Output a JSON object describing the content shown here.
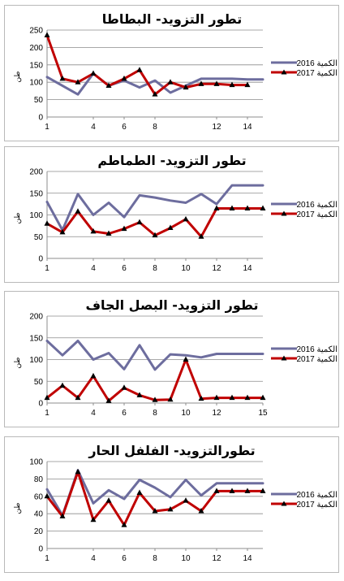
{
  "chart_data": [
    {
      "type": "line",
      "title": "تطور التزويد- البطاطا",
      "ylabel": "طن",
      "ylim": [
        0,
        250
      ],
      "yticks": [
        0,
        50,
        100,
        150,
        200,
        250
      ],
      "xlim": [
        1,
        15
      ],
      "xticks": [
        1,
        4,
        6,
        8,
        12,
        14
      ],
      "grid": true,
      "legend": "right",
      "series": [
        {
          "name": "2016 الكمية",
          "color": "#6d6d9e",
          "marker": "none",
          "x": [
            1,
            3,
            4,
            5,
            6,
            7,
            8,
            9,
            10,
            11,
            12,
            13,
            14,
            15
          ],
          "values": [
            115,
            65,
            125,
            90,
            105,
            85,
            105,
            70,
            90,
            110,
            110,
            110,
            108,
            108
          ]
        },
        {
          "name": "2017 الكمية",
          "color": "#c00000",
          "marker": "triangle",
          "x": [
            1,
            2,
            3,
            4,
            5,
            6,
            7,
            8,
            9,
            10,
            11,
            12,
            13,
            14
          ],
          "values": [
            235,
            110,
            100,
            125,
            90,
            110,
            135,
            65,
            100,
            85,
            95,
            95,
            92,
            92
          ]
        }
      ]
    },
    {
      "type": "line",
      "title": "تطور التزويد- الطماطم",
      "ylabel": "طن",
      "ylim": [
        0,
        200
      ],
      "yticks": [
        0,
        50,
        100,
        150,
        200
      ],
      "xlim": [
        1,
        15
      ],
      "xticks": [
        1,
        4,
        6,
        8,
        10,
        12,
        14
      ],
      "grid": true,
      "legend": "right",
      "series": [
        {
          "name": "2016 الكمية",
          "color": "#6d6d9e",
          "marker": "none",
          "x": [
            1,
            2,
            3,
            4,
            5,
            6,
            7,
            8,
            9,
            10,
            11,
            12,
            13,
            14,
            15
          ],
          "values": [
            130,
            65,
            148,
            100,
            128,
            95,
            145,
            140,
            133,
            128,
            148,
            125,
            168,
            168,
            168
          ]
        },
        {
          "name": "2017 الكمية",
          "color": "#c00000",
          "marker": "triangle",
          "x": [
            1,
            2,
            3,
            4,
            5,
            6,
            7,
            8,
            9,
            10,
            11,
            12,
            13,
            14,
            15
          ],
          "values": [
            80,
            60,
            108,
            62,
            57,
            68,
            83,
            53,
            70,
            90,
            50,
            115,
            115,
            115,
            115
          ]
        }
      ]
    },
    {
      "type": "line",
      "title": "تطور التزويد- البصل الجاف",
      "ylabel": "طن",
      "ylim": [
        0,
        200
      ],
      "yticks": [
        0,
        50,
        100,
        150,
        200
      ],
      "xlim": [
        1,
        15
      ],
      "xticks": [
        1,
        4,
        6,
        8,
        10,
        12,
        15
      ],
      "grid": true,
      "legend": "right",
      "series": [
        {
          "name": "2016 الكمية",
          "color": "#6d6d9e",
          "marker": "none",
          "x": [
            1,
            2,
            3,
            4,
            5,
            6,
            7,
            8,
            9,
            10,
            11,
            12,
            13,
            14,
            15
          ],
          "values": [
            143,
            110,
            143,
            100,
            115,
            78,
            133,
            77,
            112,
            110,
            105,
            113,
            113,
            113,
            113
          ]
        },
        {
          "name": "2017 الكمية",
          "color": "#c00000",
          "marker": "triangle",
          "x": [
            1,
            2,
            3,
            4,
            5,
            6,
            7,
            8,
            9,
            10,
            11,
            12,
            13,
            14,
            15
          ],
          "values": [
            12,
            40,
            12,
            62,
            5,
            35,
            18,
            7,
            8,
            100,
            10,
            12,
            12,
            12,
            12
          ]
        }
      ]
    },
    {
      "type": "line",
      "title": "تطورالتزويد- الفلفل الحار",
      "ylabel": "طن",
      "ylim": [
        0,
        100
      ],
      "yticks": [
        0,
        20,
        40,
        60,
        80,
        100
      ],
      "xlim": [
        1,
        15
      ],
      "xticks": [
        1,
        4,
        6,
        8,
        10,
        12,
        14
      ],
      "grid": true,
      "legend": "right",
      "series": [
        {
          "name": "2016 الكمية",
          "color": "#6d6d9e",
          "marker": "none",
          "x": [
            1,
            2,
            3,
            4,
            5,
            6,
            7,
            8,
            9,
            10,
            11,
            12,
            13,
            14,
            15
          ],
          "values": [
            68,
            38,
            90,
            52,
            67,
            57,
            79,
            70,
            59,
            79,
            61,
            75,
            75,
            75,
            75
          ]
        },
        {
          "name": "2017 الكمية",
          "color": "#c00000",
          "marker": "triangle",
          "x": [
            1,
            2,
            3,
            4,
            5,
            6,
            7,
            8,
            9,
            10,
            11,
            12,
            13,
            14,
            15
          ],
          "values": [
            60,
            37,
            88,
            33,
            55,
            27,
            64,
            43,
            45,
            55,
            43,
            66,
            66,
            66,
            66
          ]
        }
      ]
    }
  ]
}
